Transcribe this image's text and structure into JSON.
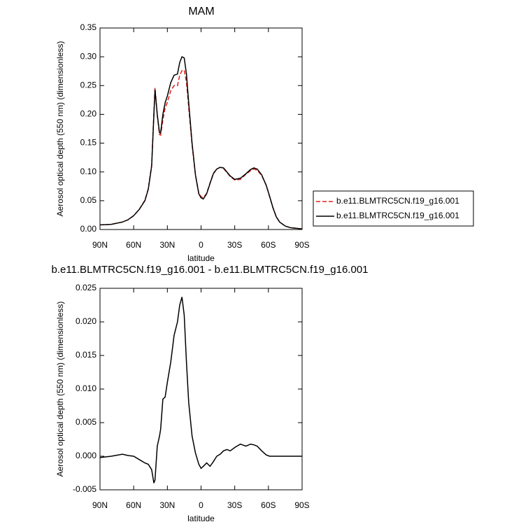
{
  "chart_data": [
    {
      "type": "line",
      "title": "MAM",
      "xlabel": "latitude",
      "ylabel": "Aerosol optical depth (550 nm) (dimensionless)",
      "x": [
        90,
        80,
        70,
        65,
        60,
        55,
        50,
        47,
        44,
        42,
        41,
        39,
        37,
        36,
        34,
        32,
        30,
        27,
        24,
        21,
        19,
        17,
        15,
        13,
        11,
        8,
        5,
        2,
        0,
        -2,
        -5,
        -8,
        -11,
        -14,
        -17,
        -20,
        -23,
        -26,
        -30,
        -35,
        -40,
        -44,
        -47,
        -50,
        -54,
        -58,
        -61,
        -64,
        -67,
        -70,
        -75,
        -80,
        -90
      ],
      "series": [
        {
          "name": "b.e11.BLMTRC5CN.f19_g16.001",
          "color": "#e0201b",
          "dashed": true,
          "values": [
            0.008,
            0.009,
            0.013,
            0.017,
            0.024,
            0.035,
            0.051,
            0.071,
            0.112,
            0.204,
            0.246,
            0.198,
            0.165,
            0.164,
            0.19,
            0.211,
            0.221,
            0.241,
            0.25,
            0.25,
            0.268,
            0.276,
            0.277,
            0.256,
            0.212,
            0.147,
            0.095,
            0.063,
            0.057,
            0.055,
            0.063,
            0.081,
            0.098,
            0.105,
            0.108,
            0.106,
            0.099,
            0.092,
            0.086,
            0.087,
            0.096,
            0.102,
            0.105,
            0.103,
            0.094,
            0.077,
            0.058,
            0.038,
            0.022,
            0.013,
            0.006,
            0.003,
            0.001
          ]
        },
        {
          "name": "b.e11.BLMTRC5CN.f19_g16.001",
          "color": "#000000",
          "dashed": false,
          "values": [
            0.008,
            0.009,
            0.013,
            0.017,
            0.024,
            0.035,
            0.05,
            0.07,
            0.11,
            0.2,
            0.243,
            0.2,
            0.168,
            0.168,
            0.2,
            0.22,
            0.232,
            0.255,
            0.268,
            0.27,
            0.29,
            0.3,
            0.298,
            0.27,
            0.22,
            0.15,
            0.095,
            0.062,
            0.055,
            0.053,
            0.062,
            0.08,
            0.097,
            0.105,
            0.108,
            0.107,
            0.1,
            0.093,
            0.087,
            0.089,
            0.097,
            0.104,
            0.107,
            0.105,
            0.095,
            0.077,
            0.058,
            0.038,
            0.022,
            0.013,
            0.006,
            0.003,
            0.001
          ]
        }
      ],
      "xlim": [
        90,
        -90
      ],
      "xticks": [
        {
          "value": 90,
          "label": "90N"
        },
        {
          "value": 60,
          "label": "60N"
        },
        {
          "value": 30,
          "label": "30N"
        },
        0,
        {
          "value": -30,
          "label": "30S"
        },
        {
          "value": -60,
          "label": "60S"
        },
        {
          "value": -90,
          "label": "90S"
        }
      ],
      "ylim": [
        0,
        0.35
      ],
      "yticks": [
        {
          "value": 0,
          "label": "0.00"
        },
        0.05,
        {
          "value": 0.1,
          "label": "0.10"
        },
        0.15,
        {
          "value": 0.2,
          "label": "0.20"
        },
        0.25,
        {
          "value": 0.3,
          "label": "0.30"
        },
        0.35
      ],
      "legend": "right"
    },
    {
      "type": "line",
      "title": "b.e11.BLMTRC5CN.f19_g16.001 - b.e11.BLMTRC5CN.f19_g16.001",
      "xlabel": "latitude",
      "ylabel": "Aerosol optical depth (550 nm) (dimensionless)",
      "x": [
        90,
        80,
        70,
        65,
        60,
        55,
        50,
        47,
        44,
        42,
        41,
        39,
        37,
        36,
        34,
        32,
        30,
        27,
        24,
        21,
        19,
        17,
        15,
        13,
        11,
        8,
        5,
        2,
        0,
        -2,
        -5,
        -8,
        -11,
        -14,
        -17,
        -20,
        -23,
        -26,
        -30,
        -35,
        -40,
        -44,
        -47,
        -50,
        -54,
        -58,
        -61,
        -64,
        -67,
        -70,
        -75,
        -80,
        -90
      ],
      "color": "#000000",
      "values": [
        -0.0002,
        0,
        0.0003,
        0.0001,
        0,
        -0.0005,
        -0.001,
        -0.0012,
        -0.002,
        -0.004,
        -0.0035,
        0.0015,
        0.003,
        0.004,
        0.0085,
        0.0088,
        0.011,
        0.014,
        0.018,
        0.02,
        0.0225,
        0.0237,
        0.021,
        0.014,
        0.008,
        0.003,
        0.0005,
        -0.0012,
        -0.0018,
        -0.0015,
        -0.001,
        -0.0015,
        -0.0008,
        0,
        0.0003,
        0.0008,
        0.001,
        0.0008,
        0.0013,
        0.0018,
        0.0015,
        0.0018,
        0.0017,
        0.0015,
        0.0008,
        0.0002,
        0,
        0,
        0,
        0,
        0,
        0,
        0
      ],
      "xlim": [
        90,
        -90
      ],
      "xticks": [
        {
          "value": 90,
          "label": "90N"
        },
        {
          "value": 60,
          "label": "60N"
        },
        {
          "value": 30,
          "label": "30N"
        },
        0,
        {
          "value": -30,
          "label": "30S"
        },
        {
          "value": -60,
          "label": "60S"
        },
        {
          "value": -90,
          "label": "90S"
        }
      ],
      "ylim": [
        -0.005,
        0.025
      ],
      "yticks": [
        -0.005,
        {
          "value": 0,
          "label": "0.000"
        },
        0.005,
        {
          "value": 0.01,
          "label": "0.010"
        },
        0.015,
        {
          "value": 0.02,
          "label": "0.020"
        },
        0.025
      ]
    }
  ]
}
